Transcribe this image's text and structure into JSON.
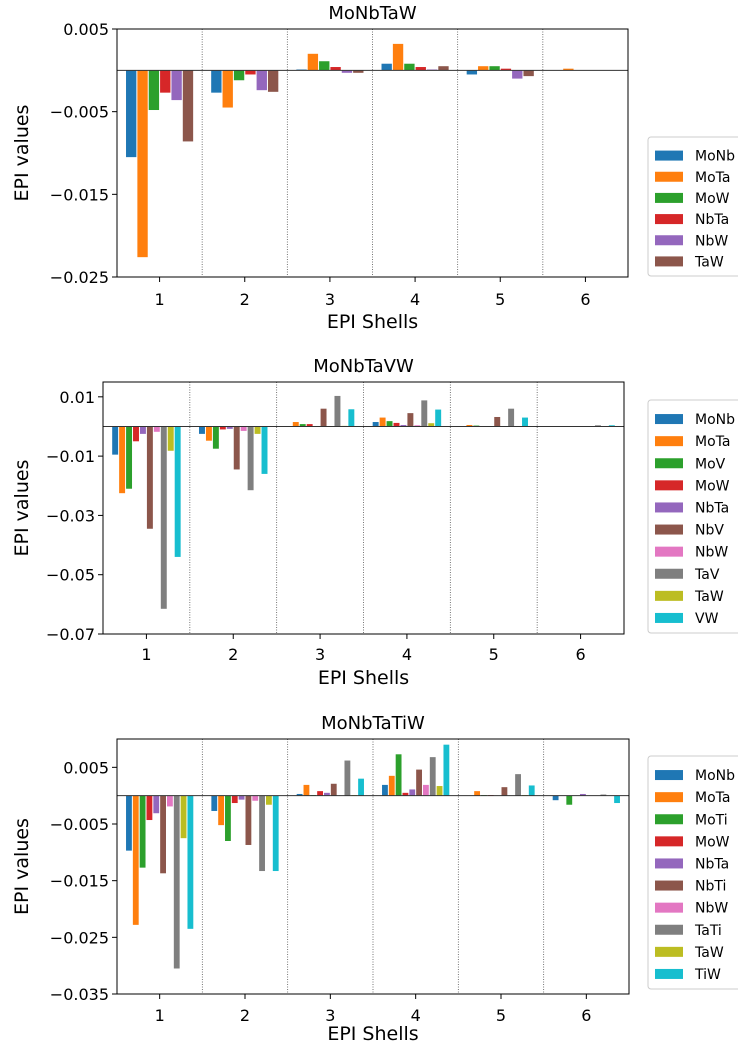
{
  "palette": {
    "blue": "#1f77b4",
    "orange": "#ff7f0e",
    "green": "#2ca02c",
    "red": "#d62728",
    "purple": "#9467bd",
    "brown": "#8c564b",
    "pink": "#e377c2",
    "gray": "#7f7f7f",
    "olive": "#bcbd22",
    "cyan": "#17becf"
  },
  "chart_data": [
    {
      "type": "bar",
      "title": "MoNbTaW",
      "xlabel": "EPI Shells",
      "ylabel": "EPI values",
      "categories": [
        "1",
        "2",
        "3",
        "4",
        "5",
        "6"
      ],
      "ylim": [
        -0.025,
        0.005
      ],
      "yticks": [
        0.005,
        -0.005,
        -0.015,
        -0.025
      ],
      "ytick_labels": [
        "0.005",
        "−0.005",
        "−0.015",
        "−0.025"
      ],
      "grid": false,
      "legend_position": "right",
      "series": [
        {
          "name": "MoNb",
          "color": "#1f77b4",
          "values": [
            -0.0105,
            -0.0027,
            0.0001,
            0.0008,
            -0.0005,
            0.0
          ]
        },
        {
          "name": "MoTa",
          "color": "#ff7f0e",
          "values": [
            -0.0226,
            -0.0045,
            0.002,
            0.0032,
            0.0005,
            0.0002
          ]
        },
        {
          "name": "MoW",
          "color": "#2ca02c",
          "values": [
            -0.0048,
            -0.0012,
            0.0011,
            0.0008,
            0.0005,
            0.0
          ]
        },
        {
          "name": "NbTa",
          "color": "#d62728",
          "values": [
            -0.0027,
            -0.0005,
            0.0004,
            0.0004,
            0.0002,
            0.0
          ]
        },
        {
          "name": "NbW",
          "color": "#9467bd",
          "values": [
            -0.0036,
            -0.0024,
            -0.0003,
            0.0001,
            -0.001,
            0.0
          ]
        },
        {
          "name": "TaW",
          "color": "#8c564b",
          "values": [
            -0.0086,
            -0.0026,
            -0.0003,
            0.0005,
            -0.0007,
            0.0
          ]
        }
      ]
    },
    {
      "type": "bar",
      "title": "MoNbTaVW",
      "xlabel": "EPI Shells",
      "ylabel": "EPI values",
      "categories": [
        "1",
        "2",
        "3",
        "4",
        "5",
        "6"
      ],
      "ylim": [
        -0.07,
        0.015
      ],
      "yticks": [
        0.01,
        -0.01,
        -0.03,
        -0.05,
        -0.07
      ],
      "ytick_labels": [
        "0.01",
        "−0.01",
        "−0.03",
        "−0.05",
        "−0.07"
      ],
      "grid": false,
      "legend_position": "right",
      "series": [
        {
          "name": "MoNb",
          "color": "#1f77b4",
          "values": [
            -0.0095,
            -0.0025,
            0.0001,
            0.0015,
            0.0001,
            0.0
          ]
        },
        {
          "name": "MoTa",
          "color": "#ff7f0e",
          "values": [
            -0.0225,
            -0.0048,
            0.0015,
            0.003,
            0.0005,
            0.0
          ]
        },
        {
          "name": "MoV",
          "color": "#2ca02c",
          "values": [
            -0.021,
            -0.0075,
            0.0008,
            0.0018,
            0.0003,
            0.0
          ]
        },
        {
          "name": "MoW",
          "color": "#d62728",
          "values": [
            -0.005,
            -0.001,
            0.0008,
            0.0012,
            0.0001,
            0.0
          ]
        },
        {
          "name": "NbTa",
          "color": "#9467bd",
          "values": [
            -0.0025,
            -0.0008,
            0.0001,
            0.0005,
            0.0,
            0.0
          ]
        },
        {
          "name": "NbV",
          "color": "#8c564b",
          "values": [
            -0.0345,
            -0.0145,
            0.006,
            0.0045,
            0.0032,
            0.0
          ]
        },
        {
          "name": "NbW",
          "color": "#e377c2",
          "values": [
            -0.0018,
            -0.0015,
            0.0,
            0.0004,
            0.0,
            0.0
          ]
        },
        {
          "name": "TaV",
          "color": "#7f7f7f",
          "values": [
            -0.0615,
            -0.0215,
            0.0103,
            0.0088,
            0.006,
            0.0004
          ]
        },
        {
          "name": "TaW",
          "color": "#bcbd22",
          "values": [
            -0.0082,
            -0.0025,
            0.0002,
            0.0011,
            0.0,
            0.0
          ]
        },
        {
          "name": "VW",
          "color": "#17becf",
          "values": [
            -0.044,
            -0.016,
            0.0058,
            0.0057,
            0.003,
            0.0004
          ]
        }
      ]
    },
    {
      "type": "bar",
      "title": "MoNbTaTiW",
      "xlabel": "EPI Shells",
      "ylabel": "EPI values",
      "categories": [
        "1",
        "2",
        "3",
        "4",
        "5",
        "6"
      ],
      "ylim": [
        -0.035,
        0.01
      ],
      "yticks": [
        0.005,
        -0.005,
        -0.015,
        -0.025,
        -0.035
      ],
      "ytick_labels": [
        "0.005",
        "−0.005",
        "−0.015",
        "−0.025",
        "−0.035"
      ],
      "grid": false,
      "legend_position": "right",
      "series": [
        {
          "name": "MoNb",
          "color": "#1f77b4",
          "values": [
            -0.0097,
            -0.0027,
            0.0003,
            0.0019,
            0.0,
            -0.0008
          ]
        },
        {
          "name": "MoTa",
          "color": "#ff7f0e",
          "values": [
            -0.0228,
            -0.0052,
            0.0019,
            0.0035,
            0.0008,
            0.0
          ]
        },
        {
          "name": "MoTi",
          "color": "#2ca02c",
          "values": [
            -0.0127,
            -0.008,
            0.0001,
            0.0073,
            0.0001,
            -0.0016
          ]
        },
        {
          "name": "MoW",
          "color": "#d62728",
          "values": [
            -0.0043,
            -0.0013,
            0.0008,
            0.0005,
            0.0001,
            0.0
          ]
        },
        {
          "name": "NbTa",
          "color": "#9467bd",
          "values": [
            -0.0031,
            -0.0007,
            0.0005,
            0.0011,
            0.0,
            0.0003
          ]
        },
        {
          "name": "NbTi",
          "color": "#8c564b",
          "values": [
            -0.0137,
            -0.0087,
            0.0021,
            0.0046,
            0.0015,
            0.0
          ]
        },
        {
          "name": "NbW",
          "color": "#e377c2",
          "values": [
            -0.0019,
            -0.0009,
            0.0,
            0.0019,
            0.0,
            0.0
          ]
        },
        {
          "name": "TaTi",
          "color": "#7f7f7f",
          "values": [
            -0.0305,
            -0.0133,
            0.0062,
            0.0068,
            0.0038,
            0.0002
          ]
        },
        {
          "name": "TaW",
          "color": "#bcbd22",
          "values": [
            -0.0075,
            -0.0016,
            0.0001,
            0.0017,
            0.0001,
            0.0
          ]
        },
        {
          "name": "TiW",
          "color": "#17becf",
          "values": [
            -0.0235,
            -0.0133,
            0.003,
            0.009,
            0.0018,
            -0.0013
          ]
        }
      ]
    }
  ]
}
